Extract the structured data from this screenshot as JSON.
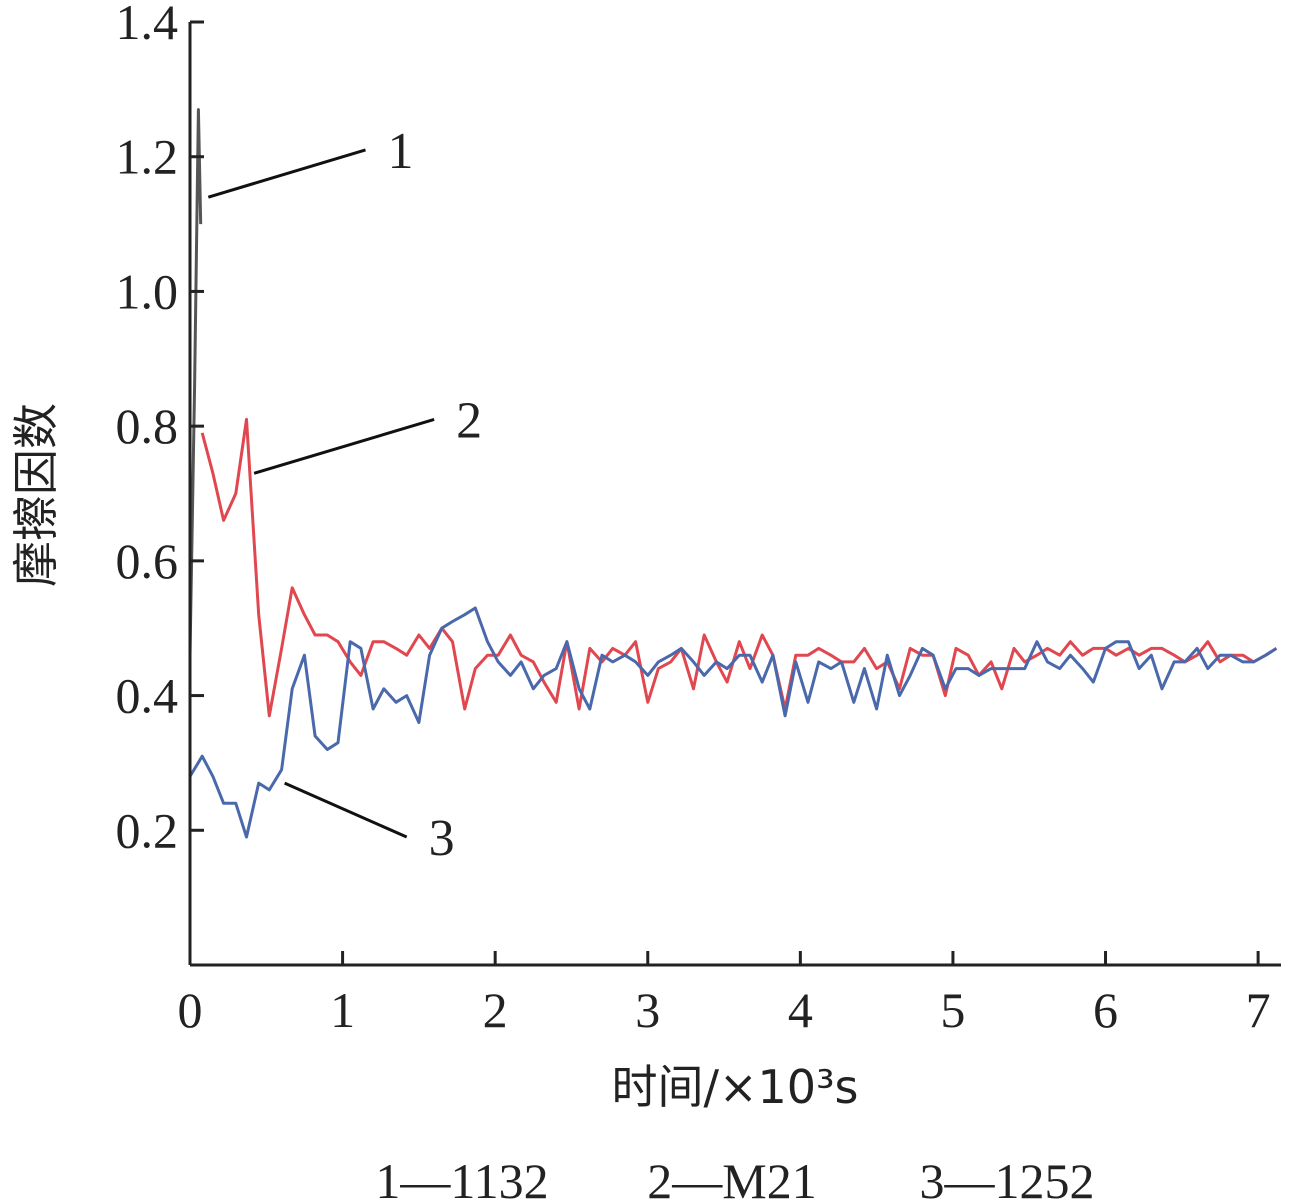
{
  "chart_data": {
    "type": "line",
    "xlabel": "时间/×10³s",
    "ylabel": "摩擦因数",
    "xlim": [
      0,
      7.15
    ],
    "ylim": [
      0,
      1.4
    ],
    "x_ticks": [
      "0",
      "1",
      "2",
      "3",
      "4",
      "5",
      "6",
      "7"
    ],
    "y_ticks": [
      "0.2",
      "0.4",
      "0.6",
      "0.8",
      "1.0",
      "1.2",
      "1.4"
    ],
    "grid": false,
    "legend": "bottom",
    "legend_text": [
      "1—1132",
      "2—M21",
      "3—1252"
    ],
    "series": [
      {
        "label": "1",
        "color": "#555555",
        "points": [
          [
            0.0,
            0.46
          ],
          [
            0.03,
            0.86
          ],
          [
            0.055,
            1.27
          ],
          [
            0.07,
            1.1
          ]
        ]
      },
      {
        "label": "2",
        "color": "#e0474f",
        "points": [
          [
            0.08,
            0.79
          ],
          [
            0.15,
            0.73
          ],
          [
            0.22,
            0.66
          ],
          [
            0.3,
            0.7
          ],
          [
            0.37,
            0.81
          ],
          [
            0.45,
            0.52
          ],
          [
            0.52,
            0.37
          ],
          [
            0.6,
            0.47
          ],
          [
            0.67,
            0.56
          ],
          [
            0.75,
            0.52
          ],
          [
            0.82,
            0.49
          ],
          [
            0.9,
            0.49
          ],
          [
            0.97,
            0.48
          ],
          [
            1.05,
            0.45
          ],
          [
            1.12,
            0.43
          ],
          [
            1.2,
            0.48
          ],
          [
            1.27,
            0.48
          ],
          [
            1.35,
            0.47
          ],
          [
            1.42,
            0.46
          ],
          [
            1.5,
            0.49
          ],
          [
            1.57,
            0.47
          ],
          [
            1.65,
            0.5
          ],
          [
            1.72,
            0.48
          ],
          [
            1.8,
            0.38
          ],
          [
            1.87,
            0.44
          ],
          [
            1.95,
            0.46
          ],
          [
            2.02,
            0.46
          ],
          [
            2.1,
            0.49
          ],
          [
            2.17,
            0.46
          ],
          [
            2.25,
            0.45
          ],
          [
            2.32,
            0.42
          ],
          [
            2.4,
            0.39
          ],
          [
            2.47,
            0.48
          ],
          [
            2.55,
            0.38
          ],
          [
            2.62,
            0.47
          ],
          [
            2.7,
            0.45
          ],
          [
            2.77,
            0.47
          ],
          [
            2.85,
            0.46
          ],
          [
            2.92,
            0.48
          ],
          [
            3.0,
            0.39
          ],
          [
            3.07,
            0.44
          ],
          [
            3.15,
            0.45
          ],
          [
            3.22,
            0.47
          ],
          [
            3.3,
            0.41
          ],
          [
            3.37,
            0.49
          ],
          [
            3.45,
            0.45
          ],
          [
            3.52,
            0.42
          ],
          [
            3.6,
            0.48
          ],
          [
            3.67,
            0.44
          ],
          [
            3.75,
            0.49
          ],
          [
            3.82,
            0.46
          ],
          [
            3.9,
            0.38
          ],
          [
            3.97,
            0.46
          ],
          [
            4.05,
            0.46
          ],
          [
            4.12,
            0.47
          ],
          [
            4.2,
            0.46
          ],
          [
            4.27,
            0.45
          ],
          [
            4.35,
            0.45
          ],
          [
            4.42,
            0.47
          ],
          [
            4.5,
            0.44
          ],
          [
            4.57,
            0.45
          ],
          [
            4.65,
            0.41
          ],
          [
            4.72,
            0.47
          ],
          [
            4.8,
            0.46
          ],
          [
            4.87,
            0.46
          ],
          [
            4.95,
            0.4
          ],
          [
            5.02,
            0.47
          ],
          [
            5.1,
            0.46
          ],
          [
            5.17,
            0.43
          ],
          [
            5.25,
            0.45
          ],
          [
            5.32,
            0.41
          ],
          [
            5.4,
            0.47
          ],
          [
            5.47,
            0.45
          ],
          [
            5.55,
            0.46
          ],
          [
            5.62,
            0.47
          ],
          [
            5.7,
            0.46
          ],
          [
            5.77,
            0.48
          ],
          [
            5.85,
            0.46
          ],
          [
            5.92,
            0.47
          ],
          [
            6.0,
            0.47
          ],
          [
            6.07,
            0.46
          ],
          [
            6.15,
            0.47
          ],
          [
            6.22,
            0.46
          ],
          [
            6.3,
            0.47
          ],
          [
            6.37,
            0.47
          ],
          [
            6.45,
            0.46
          ],
          [
            6.52,
            0.45
          ],
          [
            6.6,
            0.46
          ],
          [
            6.67,
            0.48
          ],
          [
            6.75,
            0.45
          ],
          [
            6.82,
            0.46
          ],
          [
            6.9,
            0.46
          ],
          [
            6.97,
            0.45
          ],
          [
            7.05,
            0.46
          ],
          [
            7.12,
            0.47
          ]
        ]
      },
      {
        "label": "3",
        "color": "#4a68ac",
        "points": [
          [
            0.0,
            0.28
          ],
          [
            0.08,
            0.31
          ],
          [
            0.15,
            0.28
          ],
          [
            0.22,
            0.24
          ],
          [
            0.3,
            0.24
          ],
          [
            0.37,
            0.19
          ],
          [
            0.45,
            0.27
          ],
          [
            0.52,
            0.26
          ],
          [
            0.6,
            0.29
          ],
          [
            0.67,
            0.41
          ],
          [
            0.75,
            0.46
          ],
          [
            0.82,
            0.34
          ],
          [
            0.9,
            0.32
          ],
          [
            0.97,
            0.33
          ],
          [
            1.05,
            0.48
          ],
          [
            1.12,
            0.47
          ],
          [
            1.2,
            0.38
          ],
          [
            1.27,
            0.41
          ],
          [
            1.35,
            0.39
          ],
          [
            1.42,
            0.4
          ],
          [
            1.5,
            0.36
          ],
          [
            1.57,
            0.46
          ],
          [
            1.65,
            0.5
          ],
          [
            1.72,
            0.51
          ],
          [
            1.8,
            0.52
          ],
          [
            1.87,
            0.53
          ],
          [
            1.95,
            0.48
          ],
          [
            2.02,
            0.45
          ],
          [
            2.1,
            0.43
          ],
          [
            2.17,
            0.45
          ],
          [
            2.25,
            0.41
          ],
          [
            2.32,
            0.43
          ],
          [
            2.4,
            0.44
          ],
          [
            2.47,
            0.48
          ],
          [
            2.55,
            0.41
          ],
          [
            2.62,
            0.38
          ],
          [
            2.7,
            0.46
          ],
          [
            2.77,
            0.45
          ],
          [
            2.85,
            0.46
          ],
          [
            2.92,
            0.45
          ],
          [
            3.0,
            0.43
          ],
          [
            3.07,
            0.45
          ],
          [
            3.15,
            0.46
          ],
          [
            3.22,
            0.47
          ],
          [
            3.3,
            0.45
          ],
          [
            3.37,
            0.43
          ],
          [
            3.45,
            0.45
          ],
          [
            3.52,
            0.44
          ],
          [
            3.6,
            0.46
          ],
          [
            3.67,
            0.46
          ],
          [
            3.75,
            0.42
          ],
          [
            3.82,
            0.46
          ],
          [
            3.9,
            0.37
          ],
          [
            3.97,
            0.45
          ],
          [
            4.05,
            0.39
          ],
          [
            4.12,
            0.45
          ],
          [
            4.2,
            0.44
          ],
          [
            4.27,
            0.45
          ],
          [
            4.35,
            0.39
          ],
          [
            4.42,
            0.44
          ],
          [
            4.5,
            0.38
          ],
          [
            4.57,
            0.46
          ],
          [
            4.65,
            0.4
          ],
          [
            4.72,
            0.43
          ],
          [
            4.8,
            0.47
          ],
          [
            4.87,
            0.46
          ],
          [
            4.95,
            0.41
          ],
          [
            5.02,
            0.44
          ],
          [
            5.1,
            0.44
          ],
          [
            5.17,
            0.43
          ],
          [
            5.25,
            0.44
          ],
          [
            5.32,
            0.44
          ],
          [
            5.4,
            0.44
          ],
          [
            5.47,
            0.44
          ],
          [
            5.55,
            0.48
          ],
          [
            5.62,
            0.45
          ],
          [
            5.7,
            0.44
          ],
          [
            5.77,
            0.46
          ],
          [
            5.85,
            0.44
          ],
          [
            5.92,
            0.42
          ],
          [
            6.0,
            0.47
          ],
          [
            6.07,
            0.48
          ],
          [
            6.15,
            0.48
          ],
          [
            6.22,
            0.44
          ],
          [
            6.3,
            0.46
          ],
          [
            6.37,
            0.41
          ],
          [
            6.45,
            0.45
          ],
          [
            6.52,
            0.45
          ],
          [
            6.6,
            0.47
          ],
          [
            6.67,
            0.44
          ],
          [
            6.75,
            0.46
          ],
          [
            6.82,
            0.46
          ],
          [
            6.9,
            0.45
          ],
          [
            6.97,
            0.45
          ],
          [
            7.05,
            0.46
          ],
          [
            7.12,
            0.47
          ]
        ]
      }
    ],
    "annotations": [
      {
        "text": "1",
        "series": "1",
        "at": [
          0.12,
          1.14
        ],
        "to": [
          1.15,
          1.21
        ]
      },
      {
        "text": "2",
        "series": "2",
        "at": [
          0.42,
          0.73
        ],
        "to": [
          1.6,
          0.81
        ]
      },
      {
        "text": "3",
        "series": "3",
        "at": [
          0.62,
          0.27
        ],
        "to": [
          1.42,
          0.19
        ]
      }
    ]
  }
}
